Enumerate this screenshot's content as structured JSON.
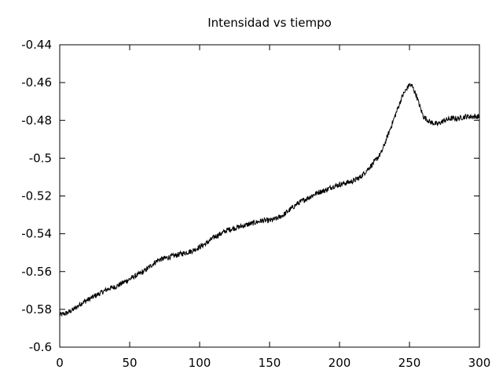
{
  "chart_data": {
    "type": "line",
    "title": "Intensidad vs tiempo",
    "xlabel": "",
    "ylabel": "",
    "xlim": [
      0,
      300
    ],
    "ylim": [
      -0.6,
      -0.44
    ],
    "x_ticks": [
      0,
      50,
      100,
      150,
      200,
      250,
      300
    ],
    "x_tick_labels": [
      "0",
      "50",
      "100",
      "150",
      "200",
      "250",
      "300"
    ],
    "y_ticks": [
      -0.6,
      -0.58,
      -0.56,
      -0.54,
      -0.52,
      -0.5,
      -0.48,
      -0.46,
      -0.44
    ],
    "y_tick_labels": [
      "-0.6",
      "-0.58",
      "-0.56",
      "-0.54",
      "-0.52",
      "-0.5",
      "-0.48",
      "-0.46",
      "-0.44"
    ],
    "grid": false,
    "legend": "none",
    "line_color": "#000000",
    "series": [
      {
        "x": [
          0,
          5,
          10,
          15,
          20,
          25,
          30,
          35,
          40,
          45,
          50,
          55,
          60,
          65,
          70,
          75,
          80,
          85,
          90,
          95,
          100,
          105,
          110,
          115,
          120,
          125,
          130,
          135,
          140,
          145,
          150,
          155,
          160,
          165,
          170,
          175,
          180,
          185,
          190,
          195,
          200,
          205,
          210,
          215,
          220,
          225,
          230,
          235,
          240,
          245,
          250,
          252,
          255,
          258,
          260,
          265,
          270,
          275,
          280,
          285,
          290,
          295,
          300
        ],
        "y": [
          -0.583,
          -0.582,
          -0.58,
          -0.577,
          -0.575,
          -0.573,
          -0.571,
          -0.569,
          -0.568,
          -0.566,
          -0.564,
          -0.562,
          -0.56,
          -0.557,
          -0.554,
          -0.553,
          -0.552,
          -0.551,
          -0.55,
          -0.549,
          -0.547,
          -0.545,
          -0.542,
          -0.54,
          -0.538,
          -0.537,
          -0.536,
          -0.535,
          -0.534,
          -0.533,
          -0.533,
          -0.532,
          -0.53,
          -0.527,
          -0.524,
          -0.522,
          -0.52,
          -0.518,
          -0.517,
          -0.515,
          -0.514,
          -0.513,
          -0.512,
          -0.51,
          -0.506,
          -0.502,
          -0.497,
          -0.487,
          -0.477,
          -0.467,
          -0.461,
          -0.462,
          -0.467,
          -0.474,
          -0.478,
          -0.481,
          -0.482,
          -0.48,
          -0.479,
          -0.479,
          -0.478,
          -0.478,
          -0.478
        ]
      }
    ]
  }
}
